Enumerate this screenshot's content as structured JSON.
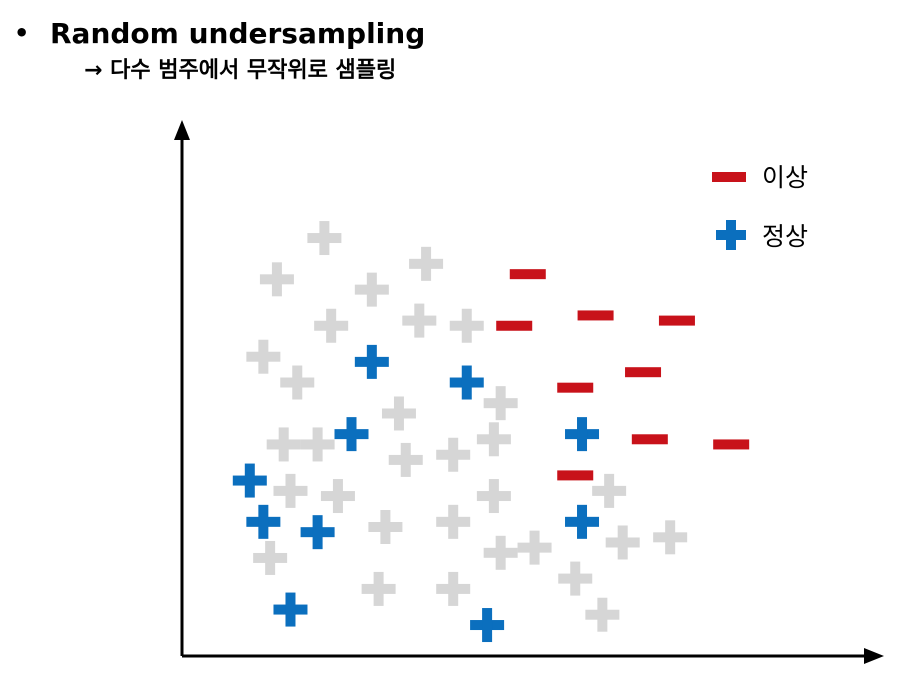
{
  "heading": {
    "bullet": "•",
    "title": "Random undersampling",
    "subtitle": "→ 다수 범주에서 무작위로 샘플링"
  },
  "legend": {
    "minus_label": "이상",
    "plus_label": "정상"
  },
  "colors": {
    "minus": "#c8121a",
    "plus_selected": "#0b6fbe",
    "plus_unselected": "#d6d6d6",
    "axis": "#000000"
  },
  "chart_data": {
    "type": "scatter",
    "title": "",
    "xlabel": "",
    "ylabel": "",
    "xlim": [
      0,
      100
    ],
    "ylim": [
      0,
      100
    ],
    "series": [
      {
        "name": "이상",
        "marker": "minus",
        "points": [
          [
            51,
            74
          ],
          [
            49,
            64
          ],
          [
            61,
            66
          ],
          [
            73,
            65
          ],
          [
            68,
            55
          ],
          [
            58,
            52
          ],
          [
            69,
            42
          ],
          [
            81,
            41
          ],
          [
            58,
            35
          ]
        ]
      },
      {
        "name": "정상",
        "marker": "plus-blue",
        "points": [
          [
            28,
            57
          ],
          [
            42,
            53
          ],
          [
            25,
            43
          ],
          [
            59,
            43
          ],
          [
            10,
            34
          ],
          [
            12,
            26
          ],
          [
            20,
            24
          ],
          [
            59,
            26
          ],
          [
            16,
            9
          ],
          [
            45,
            6
          ]
        ]
      },
      {
        "marker": "plus-gray",
        "points": [
          [
            21,
            81
          ],
          [
            14,
            73
          ],
          [
            28,
            71
          ],
          [
            36,
            76
          ],
          [
            12,
            58
          ],
          [
            22,
            64
          ],
          [
            35,
            65
          ],
          [
            42,
            64
          ],
          [
            17,
            53
          ],
          [
            32,
            47
          ],
          [
            47,
            49
          ],
          [
            15,
            41
          ],
          [
            20,
            41
          ],
          [
            33,
            38
          ],
          [
            40,
            39
          ],
          [
            46,
            42
          ],
          [
            16,
            32
          ],
          [
            23,
            31
          ],
          [
            46,
            31
          ],
          [
            30,
            25
          ],
          [
            40,
            26
          ],
          [
            13,
            19
          ],
          [
            47,
            20
          ],
          [
            52,
            21
          ],
          [
            58,
            15
          ],
          [
            29,
            13
          ],
          [
            40,
            13
          ],
          [
            63,
            32
          ],
          [
            65,
            22
          ],
          [
            72,
            23
          ],
          [
            62,
            8
          ]
        ]
      }
    ]
  }
}
